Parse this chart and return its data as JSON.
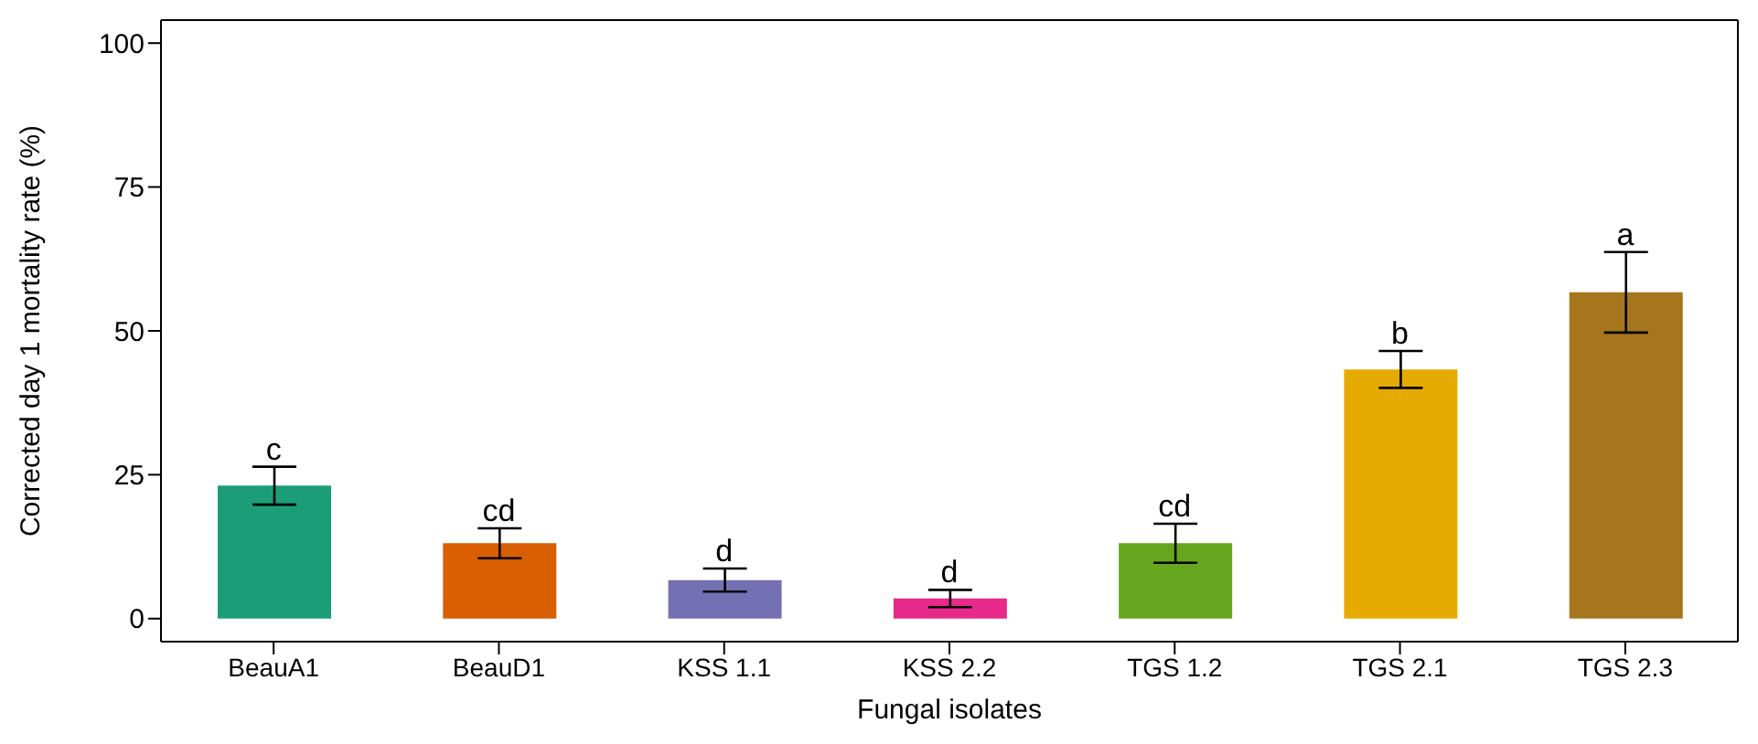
{
  "chart_data": {
    "type": "bar",
    "xlabel": "Fungal isolates",
    "ylabel": "Corrected day 1 mortality rate (%)",
    "categories": [
      "BeauA1",
      "BeauD1",
      "KSS 1.1",
      "KSS 2.2",
      "TGS 1.2",
      "TGS 2.1",
      "TGS 2.3"
    ],
    "values": [
      23.1,
      13.1,
      6.7,
      3.5,
      13.1,
      43.3,
      56.7
    ],
    "errors": [
      3.3,
      2.6,
      2,
      1.5,
      3.4,
      3.2,
      7
    ],
    "colors": [
      "#1b9e77",
      "#d95f02",
      "#7570b3",
      "#e7298a",
      "#66a61e",
      "#e6ab02",
      "#a6761d"
    ],
    "ylim": [
      -4,
      104
    ],
    "yticks": [
      0,
      25,
      50,
      75,
      100
    ],
    "annotations": [
      {
        "text": "c",
        "x": "BeauA1",
        "y": 26.4
      },
      {
        "text": "cd",
        "x": "BeauD1",
        "y": 15.7
      },
      {
        "text": "d",
        "x": "KSS 1.1",
        "y": 8.7
      },
      {
        "text": "d",
        "x": "KSS 2.2",
        "y": 5
      },
      {
        "text": "cd",
        "x": "TGS 1.2",
        "y": 16.5
      },
      {
        "text": "b",
        "x": "TGS 2.1",
        "y": 46.5
      },
      {
        "text": "a",
        "x": "TGS 2.3",
        "y": 63.7
      }
    ]
  }
}
